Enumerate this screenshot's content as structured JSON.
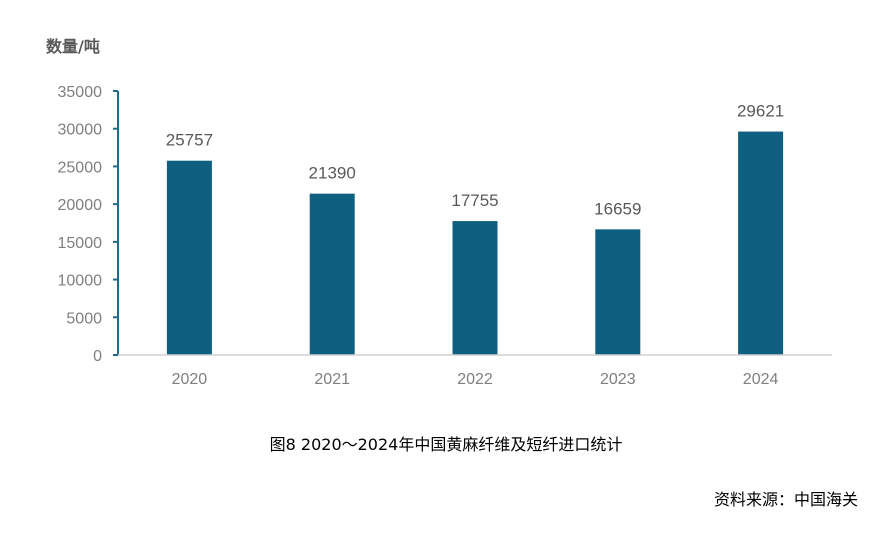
{
  "chart_data": {
    "type": "bar",
    "ylabel": "数量/吨",
    "categories": [
      "2020",
      "2021",
      "2022",
      "2023",
      "2024"
    ],
    "values": [
      25757,
      21390,
      17755,
      16659,
      29621
    ],
    "ylim": [
      0,
      35000
    ],
    "yticks": [
      "0",
      "5000",
      "10000",
      "15000",
      "20000",
      "25000",
      "30000",
      "35000"
    ],
    "bar_color": "#0e5f80",
    "axis_color": "#1f6a86",
    "grid": false,
    "legend": "none"
  },
  "caption": "图8  2020～2024年中国黄麻纤维及短纤进口统计",
  "source": "资料来源：中国海关"
}
